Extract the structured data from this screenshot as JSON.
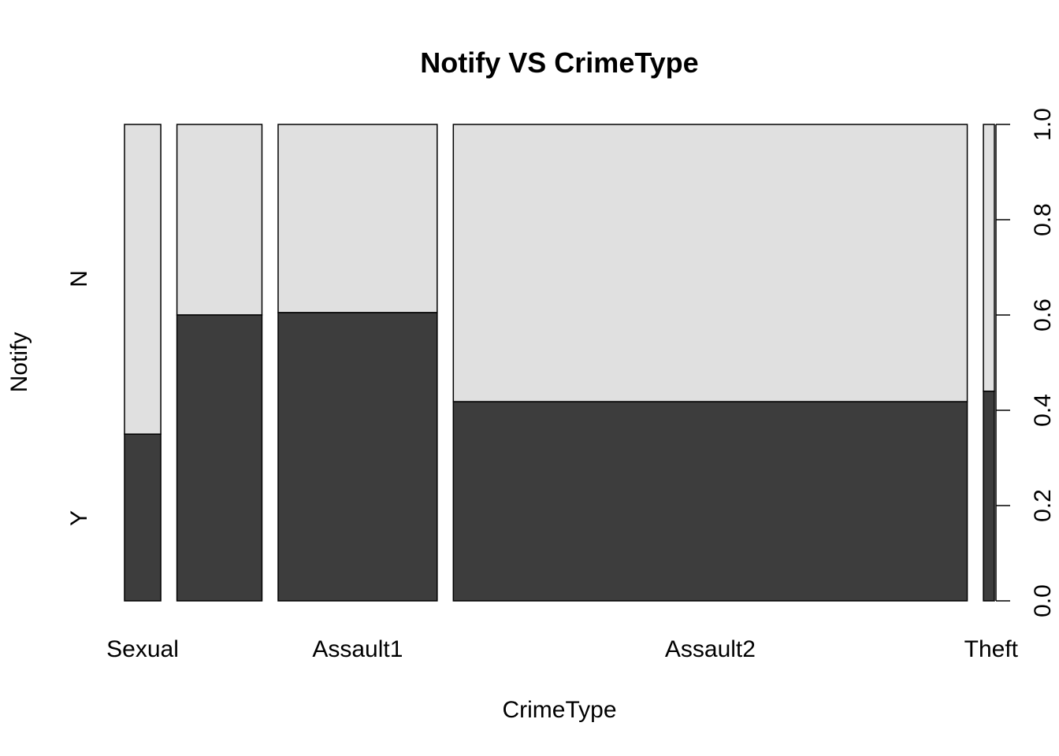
{
  "chart_data": {
    "type": "mosaic",
    "title": "Notify VS CrimeType",
    "xlabel": "CrimeType",
    "ylabel": "Notify",
    "categories": [
      "Sexual",
      "",
      "Assault1",
      "Assault2",
      "Theft"
    ],
    "category_weights": [
      0.076,
      0.178,
      0.333,
      1.076,
      0.023
    ],
    "series": [
      {
        "name": "Y",
        "values": [
          0.35,
          0.6,
          0.605,
          0.418,
          0.44
        ]
      },
      {
        "name": "N",
        "values": [
          0.65,
          0.4,
          0.395,
          0.582,
          0.56
        ]
      }
    ],
    "y_level_labels": [
      "Y",
      "N"
    ],
    "right_axis": {
      "ylim": [
        0,
        1
      ],
      "ticks": [
        "0.0",
        "0.2",
        "0.4",
        "0.6",
        "0.8",
        "1.0"
      ]
    },
    "colors": {
      "Y": "#3d3d3d",
      "N": "#e0e0e0",
      "stroke": "#000000"
    }
  }
}
